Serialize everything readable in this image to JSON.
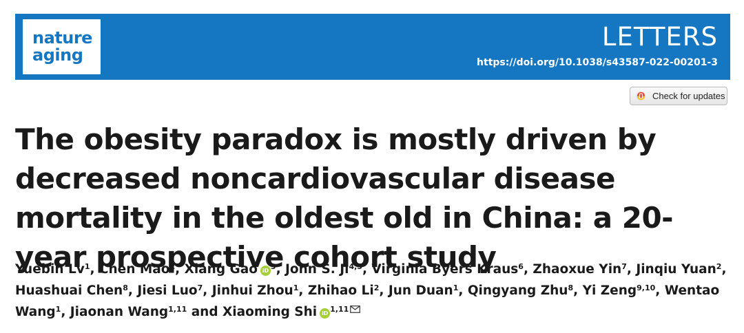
{
  "header": {
    "journal_line1": "nature",
    "journal_line2": "aging",
    "section": "LETTERS",
    "doi": "https://doi.org/10.1038/s43587-022-00201-3",
    "banner_color": "#1577c2"
  },
  "check_updates": {
    "label": "Check for updates",
    "icon": "crossmark-icon"
  },
  "article": {
    "title": "The obesity paradox is mostly driven by decreased noncardiovascular disease mortality in the oldest old in China: a 20-year prospective cohort study"
  },
  "authors": [
    {
      "name": "Yuebin Lv",
      "aff": "1",
      "orcid": false,
      "sep": ", "
    },
    {
      "name": "Chen Mao",
      "aff": "2",
      "orcid": false,
      "sep": ", "
    },
    {
      "name": "Xiang Gao",
      "aff": "3",
      "orcid": true,
      "sep": ", "
    },
    {
      "name": "John S. Ji",
      "aff": "4,5",
      "orcid": false,
      "sep": ", "
    },
    {
      "name": "Virginia Byers Kraus",
      "aff": "6",
      "orcid": false,
      "sep": ", "
    },
    {
      "name": "Zhaoxue Yin",
      "aff": "7",
      "orcid": false,
      "sep": ", "
    },
    {
      "name": "Jinqiu Yuan",
      "aff": "2",
      "orcid": false,
      "sep": ", "
    },
    {
      "name": "Huashuai Chen",
      "aff": "8",
      "orcid": false,
      "sep": ", "
    },
    {
      "name": "Jiesi Luo",
      "aff": "7",
      "orcid": false,
      "sep": ", "
    },
    {
      "name": "Jinhui Zhou",
      "aff": "1",
      "orcid": false,
      "sep": ", "
    },
    {
      "name": "Zhihao Li",
      "aff": "2",
      "orcid": false,
      "sep": ", "
    },
    {
      "name": "Jun Duan",
      "aff": "1",
      "orcid": false,
      "sep": ", "
    },
    {
      "name": "Qingyang Zhu",
      "aff": "8",
      "orcid": false,
      "sep": ", "
    },
    {
      "name": "Yi Zeng",
      "aff": "9,10",
      "orcid": false,
      "sep": ", "
    },
    {
      "name": "Wentao Wang",
      "aff": "1",
      "orcid": false,
      "sep": ", "
    },
    {
      "name": "Jiaonan Wang",
      "aff": "1,11",
      "orcid": false,
      "sep": " and "
    },
    {
      "name": "Xiaoming Shi",
      "aff": "1,11",
      "orcid": true,
      "sep": "",
      "corresponding": true
    }
  ],
  "orcid_color": "#a6ce39"
}
